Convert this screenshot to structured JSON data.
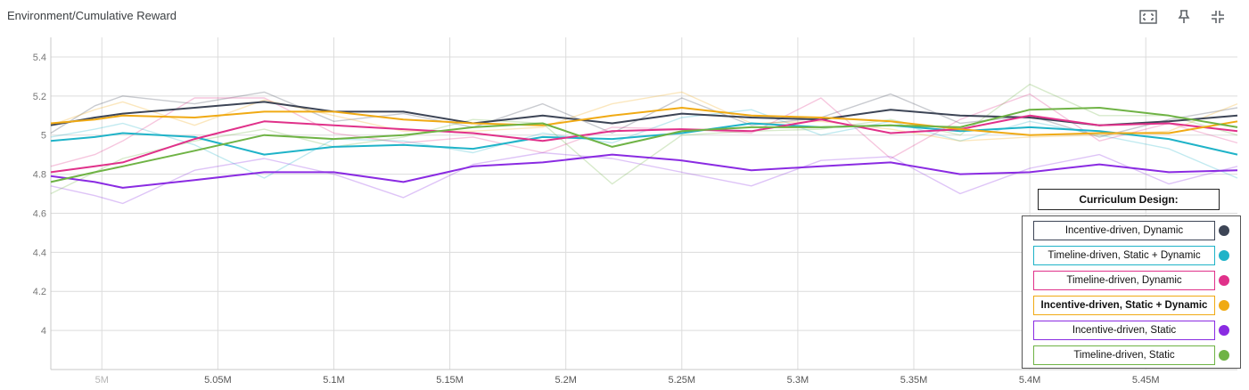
{
  "chart_title": "Environment/Cumulative Reward",
  "toolbar": {
    "icons": [
      "fit-to-screen-icon",
      "pin-icon",
      "collapse-icon"
    ]
  },
  "chart_data": {
    "type": "line",
    "title": "Environment/Cumulative Reward",
    "xlim": [
      4.978,
      5.4895
    ],
    "ylim": [
      3.8,
      5.5
    ],
    "x_ticks": [
      5.0,
      5.05,
      5.1,
      5.15,
      5.2,
      5.25,
      5.3,
      5.35,
      5.4,
      5.45
    ],
    "x_tick_labels": [
      "5M",
      "5.05M",
      "5.1M",
      "5.15M",
      "5.2M",
      "5.25M",
      "5.3M",
      "5.35M",
      "5.4M",
      "5.45M"
    ],
    "y_ticks": [
      4.0,
      4.2,
      4.4,
      4.6,
      4.8,
      5.0,
      5.2,
      5.4
    ],
    "y_tick_labels": [
      "4",
      "4.2",
      "4.4",
      "4.6",
      "4.8",
      "5",
      "5.2",
      "5.4"
    ],
    "grid": true,
    "x": [
      4.978,
      4.997,
      5.009,
      5.04,
      5.07,
      5.1,
      5.13,
      5.16,
      5.19,
      5.22,
      5.25,
      5.28,
      5.31,
      5.34,
      5.37,
      5.4,
      5.43,
      5.46,
      5.4895
    ],
    "series": [
      {
        "name": "Incentive-driven, Dynamic",
        "color": "#3d4556",
        "values": [
          5.05,
          5.09,
          5.11,
          5.14,
          5.17,
          5.12,
          5.12,
          5.06,
          5.1,
          5.06,
          5.11,
          5.09,
          5.08,
          5.13,
          5.1,
          5.09,
          5.05,
          5.07,
          5.1
        ],
        "raw": [
          5.01,
          5.15,
          5.2,
          5.16,
          5.22,
          5.07,
          5.11,
          5.04,
          5.16,
          5.01,
          5.19,
          5.05,
          5.09,
          5.21,
          5.06,
          5.1,
          4.99,
          5.08,
          5.14
        ]
      },
      {
        "name": "Timeline-driven, Static + Dynamic",
        "color": "#1fb3c8",
        "values": [
          4.97,
          4.99,
          5.01,
          4.99,
          4.9,
          4.94,
          4.95,
          4.93,
          4.99,
          4.98,
          5.01,
          5.06,
          5.04,
          5.05,
          5.02,
          5.04,
          5.02,
          4.98,
          4.9
        ],
        "raw": [
          4.99,
          5.03,
          5.06,
          4.95,
          4.78,
          4.98,
          4.97,
          4.91,
          5.01,
          4.96,
          5.09,
          5.13,
          5.0,
          5.07,
          4.97,
          5.07,
          5.0,
          4.93,
          4.78
        ]
      },
      {
        "name": "Timeline-driven, Dynamic",
        "color": "#e0318a",
        "values": [
          4.81,
          4.84,
          4.86,
          4.98,
          5.07,
          5.05,
          5.03,
          5.01,
          4.97,
          5.02,
          5.03,
          5.02,
          5.08,
          5.01,
          5.03,
          5.1,
          5.05,
          5.06,
          5.02
        ],
        "raw": [
          4.84,
          4.9,
          4.97,
          5.19,
          5.19,
          5.01,
          4.96,
          4.99,
          4.91,
          5.04,
          5.03,
          5.01,
          5.19,
          4.88,
          5.08,
          5.21,
          4.97,
          5.06,
          4.96
        ]
      },
      {
        "name": "Incentive-driven, Static + Dynamic",
        "color": "#f0aa14",
        "values": [
          5.06,
          5.08,
          5.1,
          5.09,
          5.12,
          5.12,
          5.08,
          5.06,
          5.05,
          5.1,
          5.14,
          5.1,
          5.09,
          5.07,
          5.03,
          5.0,
          5.01,
          5.01,
          5.07
        ],
        "raw": [
          5.05,
          5.13,
          5.17,
          5.05,
          5.18,
          5.1,
          5.02,
          5.02,
          5.04,
          5.16,
          5.22,
          5.06,
          5.07,
          5.03,
          4.97,
          4.99,
          5.0,
          5.02,
          5.16
        ]
      },
      {
        "name": "Incentive-driven, Static",
        "color": "#8a2be2",
        "values": [
          4.79,
          4.76,
          4.73,
          4.77,
          4.81,
          4.81,
          4.76,
          4.84,
          4.86,
          4.9,
          4.87,
          4.82,
          4.84,
          4.86,
          4.8,
          4.81,
          4.85,
          4.81,
          4.82
        ],
        "raw": [
          4.74,
          4.69,
          4.65,
          4.82,
          4.88,
          4.8,
          4.68,
          4.85,
          4.91,
          4.88,
          4.81,
          4.74,
          4.87,
          4.89,
          4.7,
          4.83,
          4.9,
          4.75,
          4.84
        ]
      },
      {
        "name": "Timeline-driven, Static",
        "color": "#6fb345",
        "values": [
          4.76,
          4.81,
          4.84,
          4.92,
          5.0,
          4.98,
          5.0,
          5.04,
          5.06,
          4.94,
          5.02,
          5.04,
          5.04,
          5.05,
          5.04,
          5.13,
          5.14,
          5.1,
          5.04
        ],
        "raw": [
          4.7,
          4.81,
          4.88,
          4.97,
          5.03,
          4.94,
          4.99,
          5.08,
          5.06,
          4.75,
          5.0,
          5.02,
          5.03,
          5.08,
          5.0,
          5.26,
          5.1,
          5.1,
          5.0
        ]
      }
    ],
    "legend_title": "Curriculum Design:",
    "legend_position": "bottom-right"
  }
}
